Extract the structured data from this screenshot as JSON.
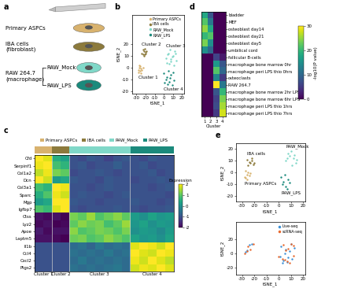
{
  "diagram": {
    "panel_label": "a",
    "cells": [
      {
        "label": "Primary ASPCs",
        "color": "#d8b26e"
      },
      {
        "label": "IBA cells\n(fibroblast)",
        "color": "#8c7a3c"
      }
    ],
    "group": {
      "label": "RAW 264.7\n(macrophage)",
      "members": [
        {
          "label": "RAW_Mock",
          "color": "#80d8c8"
        },
        {
          "label": "RAW_LPS",
          "color": "#1b8a7c"
        }
      ]
    }
  },
  "chart_data": [
    {
      "type": "scatter",
      "panel_label": "b",
      "xlabel": "tSNE_1",
      "ylabel": "tSNE_2",
      "xlim": [
        -35,
        22
      ],
      "ylim": [
        -22,
        45
      ],
      "xticks": [
        -30,
        -20,
        -10,
        0,
        10,
        20
      ],
      "yticks": [
        -20,
        -10,
        0,
        10,
        20
      ],
      "legend": "upper right",
      "series": [
        {
          "name": "Primary ASPCs",
          "color": "#d8b26e",
          "cluster": "Cluster 1",
          "x": [
            -28,
            -27,
            -26,
            -25,
            -27,
            -24,
            -26,
            -28,
            -25,
            -23
          ],
          "y": [
            -2,
            0,
            -3,
            -1,
            2,
            -2,
            1,
            -4,
            -5,
            0
          ]
        },
        {
          "name": "IBA cells",
          "color": "#8c7a3c",
          "cluster": "Cluster 2",
          "x": [
            -24,
            -22,
            -21,
            -23,
            -20,
            -22,
            -19,
            -21,
            -23,
            -20
          ],
          "y": [
            12,
            14,
            11,
            15,
            13,
            10,
            14,
            16,
            11,
            12
          ]
        },
        {
          "name": "RAW_Mock",
          "color": "#80d8c8",
          "cluster": "Cluster 3",
          "x": [
            2,
            5,
            8,
            10,
            12,
            6,
            9,
            14,
            4,
            11,
            7,
            13,
            3,
            8
          ],
          "y": [
            8,
            12,
            5,
            10,
            14,
            3,
            9,
            6,
            11,
            2,
            15,
            12,
            4,
            7
          ]
        },
        {
          "name": "RAW_LPS",
          "color": "#1b8a7c",
          "cluster": "Cluster 4",
          "x": [
            0,
            3,
            6,
            9,
            2,
            5,
            8,
            11,
            4,
            7,
            1,
            10
          ],
          "y": [
            -5,
            -8,
            -12,
            -15,
            -10,
            -3,
            -6,
            -11,
            -14,
            -9,
            -13,
            -4
          ]
        }
      ]
    },
    {
      "type": "heatmap",
      "panel_label": "c",
      "groups": [
        {
          "name": "Primary ASPCs",
          "color": "#d8b26e"
        },
        {
          "name": "IBA cells",
          "color": "#8c7a3c"
        },
        {
          "name": "RAW_Mock",
          "color": "#80d8c8"
        },
        {
          "name": "RAW_LPS",
          "color": "#1b8a7c"
        }
      ],
      "column_samples": [
        "Primary ASPCs",
        "Primary ASPCs",
        "IBA cells",
        "IBA cells",
        "RAW_Mock",
        "RAW_Mock",
        "RAW_Mock",
        "RAW_Mock",
        "RAW_Mock",
        "RAW_Mock",
        "RAW_Mock",
        "RAW_LPS",
        "RAW_LPS",
        "RAW_LPS",
        "RAW_LPS",
        "RAW_LPS"
      ],
      "column_clusters": [
        "Cluster 1",
        "Cluster 1",
        "Cluster 2",
        "Cluster 2",
        "Cluster 3",
        "Cluster 3",
        "Cluster 3",
        "Cluster 3",
        "Cluster 3",
        "Cluster 3",
        "Cluster 3",
        "Cluster 4",
        "Cluster 4",
        "Cluster 4",
        "Cluster 4",
        "Cluster 4"
      ],
      "rows": [
        "Cfd",
        "Serpinf1",
        "Col1a2",
        "Dcn",
        "Col3a1",
        "Sparc",
        "Mgp",
        "Igfbp7",
        "Ctss",
        "Lyz2",
        "Apoe",
        "Laptm5",
        "Il1b",
        "Ccl4",
        "Cxcl2",
        "Ptgs2"
      ],
      "cells": [
        [
          2.0,
          1.8,
          0.5,
          0.3,
          -1.0,
          -1.1,
          -0.9,
          -1.0,
          -1.2,
          -1.0,
          -0.9,
          -1.0,
          -1.1,
          -0.9,
          -1.0,
          -1.0
        ],
        [
          1.9,
          2.0,
          0.8,
          0.6,
          -1.0,
          -0.9,
          -1.1,
          -1.0,
          -1.0,
          -0.8,
          -1.0,
          -1.0,
          -0.9,
          -1.1,
          -1.0,
          -1.0
        ],
        [
          1.6,
          1.9,
          1.2,
          1.0,
          -1.1,
          -1.0,
          -1.0,
          -0.9,
          -1.0,
          -1.1,
          -1.0,
          -1.0,
          -1.0,
          -0.9,
          -1.1,
          -1.0
        ],
        [
          2.0,
          1.7,
          0.2,
          0.4,
          -0.9,
          -1.0,
          -1.0,
          -1.1,
          -0.9,
          -1.0,
          -1.0,
          -1.1,
          -1.0,
          -1.0,
          -0.9,
          -1.0
        ],
        [
          0.8,
          0.6,
          2.0,
          1.9,
          -1.0,
          -1.0,
          -1.1,
          -1.0,
          -0.9,
          -1.0,
          -1.0,
          -1.0,
          -1.0,
          -1.1,
          -1.0,
          -0.9
        ],
        [
          0.5,
          0.9,
          1.9,
          1.7,
          -1.0,
          -0.9,
          -1.0,
          -1.0,
          -1.1,
          -1.0,
          -0.9,
          -1.0,
          -1.0,
          -1.0,
          -1.0,
          -1.1
        ],
        [
          0.2,
          0.4,
          2.0,
          2.0,
          -0.9,
          -1.0,
          -1.0,
          -1.1,
          -1.0,
          -1.0,
          -1.0,
          -0.9,
          -1.0,
          -1.0,
          -1.1,
          -1.0
        ],
        [
          0.9,
          0.7,
          1.8,
          2.0,
          -1.0,
          -1.1,
          -1.0,
          -1.0,
          -1.0,
          -0.9,
          -1.0,
          -1.0,
          -1.1,
          -1.0,
          -1.0,
          -0.9
        ],
        [
          -1.8,
          -1.9,
          -1.8,
          -2.0,
          1.2,
          1.0,
          1.4,
          0.9,
          1.1,
          1.3,
          1.0,
          0.2,
          0.0,
          0.3,
          0.1,
          0.2
        ],
        [
          -1.9,
          -1.8,
          -2.0,
          -1.9,
          1.0,
          1.3,
          1.1,
          1.2,
          0.8,
          1.0,
          1.4,
          0.1,
          0.3,
          0.0,
          0.2,
          0.1
        ],
        [
          -1.7,
          -1.9,
          -1.8,
          -1.8,
          1.3,
          0.9,
          1.0,
          1.2,
          1.1,
          0.9,
          1.2,
          0.0,
          0.2,
          0.1,
          -0.1,
          0.2
        ],
        [
          -1.8,
          -1.8,
          -1.9,
          -2.0,
          1.1,
          1.2,
          0.9,
          1.0,
          1.3,
          1.1,
          0.9,
          0.3,
          0.1,
          0.2,
          0.0,
          0.3
        ],
        [
          -1.0,
          -1.0,
          -1.0,
          -1.0,
          -0.6,
          -0.5,
          -0.7,
          -0.4,
          -0.6,
          -0.5,
          -0.6,
          1.8,
          2.0,
          1.9,
          1.7,
          2.0
        ],
        [
          -1.0,
          -1.0,
          -1.0,
          -1.0,
          -0.5,
          -0.6,
          -0.5,
          -0.6,
          -0.4,
          -0.6,
          -0.5,
          2.0,
          1.8,
          1.7,
          2.0,
          1.9
        ],
        [
          -1.0,
          -1.0,
          -1.0,
          -1.0,
          -0.6,
          -0.4,
          -0.6,
          -0.5,
          -0.6,
          -0.5,
          -0.6,
          1.9,
          1.7,
          2.0,
          1.8,
          1.6
        ],
        [
          -1.0,
          -1.0,
          -1.0,
          -1.0,
          -0.5,
          -0.6,
          -0.5,
          -0.6,
          -0.5,
          -0.4,
          -0.6,
          1.7,
          1.9,
          1.8,
          2.0,
          1.8
        ]
      ],
      "colorbar": {
        "label": "Expression",
        "range": [
          -2,
          2
        ],
        "ticks": [
          -2,
          -1,
          0,
          1,
          2
        ]
      }
    },
    {
      "type": "heatmap",
      "panel_label": "d",
      "xlabel": "Cluster",
      "columns": [
        1,
        2,
        3,
        4
      ],
      "rows": [
        "bladder",
        "MEF",
        "osteoblast day14",
        "osteoblast day21",
        "osteoblast day5",
        "umbilical cord",
        "follicular B-cells",
        "macrophage bone marrow 0hr",
        "macrophage peri LPS thio 0hrs",
        "osteoclasts",
        "RAW 264.7",
        "macrophage bone marrow 2hr LPS",
        "macrophage bone marrow 6hr LPS",
        "macrophage peri LPS thio 1hrs",
        "macrophage peri LPS thio 7hrs"
      ],
      "cells": [
        [
          18,
          8,
          0,
          0
        ],
        [
          22,
          12,
          0,
          0
        ],
        [
          25,
          18,
          0,
          0
        ],
        [
          20,
          22,
          0,
          0
        ],
        [
          24,
          15,
          0,
          0
        ],
        [
          15,
          10,
          0,
          0
        ],
        [
          0,
          0,
          6,
          2
        ],
        [
          0,
          0,
          16,
          8
        ],
        [
          0,
          0,
          22,
          10
        ],
        [
          0,
          0,
          14,
          5
        ],
        [
          0,
          0,
          30,
          12
        ],
        [
          0,
          0,
          8,
          20
        ],
        [
          0,
          0,
          6,
          24
        ],
        [
          0,
          0,
          7,
          26
        ],
        [
          0,
          0,
          5,
          28
        ]
      ],
      "colorbar": {
        "label": "-log10(P value)",
        "range": [
          0,
          30
        ],
        "ticks": [
          0,
          10,
          20,
          30
        ]
      }
    },
    {
      "type": "scatter",
      "panel_label": "e",
      "xlabel": "tSNE_1",
      "ylabel": "tSNE_2",
      "xlim": [
        -35,
        22
      ],
      "ylim": [
        -25,
        25
      ],
      "xticks": [
        -30,
        -20,
        -10,
        0,
        10,
        20
      ],
      "yticks": [
        -20,
        -10,
        0,
        10,
        20
      ],
      "series": [
        {
          "name": "Primary ASPCs",
          "color": "#d8b26e",
          "x": [
            -28,
            -26,
            -25,
            -27,
            -24,
            -26,
            -23,
            -27
          ],
          "y": [
            -4,
            -2,
            0,
            1,
            -3,
            -6,
            -1,
            -5
          ]
        },
        {
          "name": "IBA cells",
          "color": "#8c7a3c",
          "x": [
            -25,
            -23,
            -22,
            -24,
            -21,
            -26,
            -22,
            -20
          ],
          "y": [
            6,
            8,
            10,
            9,
            7,
            11,
            12,
            8
          ]
        },
        {
          "name": "RAW_Mock",
          "color": "#80d8c8",
          "x": [
            6,
            9,
            12,
            14,
            8,
            11,
            15,
            10,
            13,
            7
          ],
          "y": [
            10,
            14,
            12,
            8,
            16,
            6,
            11,
            18,
            15,
            12
          ]
        },
        {
          "name": "RAW_LPS",
          "color": "#1b8a7c",
          "x": [
            2,
            4,
            6,
            8,
            3,
            7,
            5,
            9
          ],
          "y": [
            -4,
            -8,
            -12,
            -6,
            -10,
            -14,
            -2,
            -9
          ]
        }
      ]
    },
    {
      "type": "scatter",
      "xlabel": "tSNE_1",
      "ylabel": "tSNE_2",
      "xlim": [
        -35,
        22
      ],
      "ylim": [
        -30,
        45
      ],
      "xticks": [
        -30,
        -20,
        -10,
        0,
        10,
        20
      ],
      "yticks": [
        -20,
        0,
        20
      ],
      "legend": "upper right",
      "series": [
        {
          "name": "Live-seq",
          "color": "#3a8fd6",
          "x": [
            -27,
            -24,
            -22,
            -26,
            2,
            6,
            10,
            13,
            8,
            4,
            1,
            7,
            11,
            5,
            3,
            9
          ],
          "y": [
            2,
            12,
            14,
            4,
            10,
            6,
            13,
            8,
            -6,
            -10,
            -4,
            -12,
            -8,
            0,
            -14,
            3
          ]
        },
        {
          "name": "scRNA-seq",
          "color": "#e8672c",
          "x": [
            -28,
            -25,
            -21,
            -23,
            -26,
            4,
            8,
            12,
            6,
            10,
            3,
            7,
            0,
            9,
            12,
            5
          ],
          "y": [
            0,
            10,
            13,
            6,
            3,
            12,
            7,
            11,
            4,
            14,
            -8,
            -11,
            -5,
            -14,
            -3,
            -9
          ]
        }
      ]
    }
  ]
}
